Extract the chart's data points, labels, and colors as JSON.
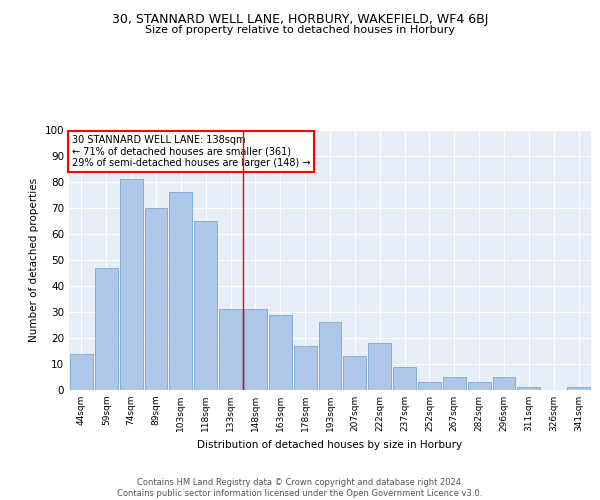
{
  "title1": "30, STANNARD WELL LANE, HORBURY, WAKEFIELD, WF4 6BJ",
  "title2": "Size of property relative to detached houses in Horbury",
  "xlabel": "Distribution of detached houses by size in Horbury",
  "ylabel": "Number of detached properties",
  "categories": [
    "44sqm",
    "59sqm",
    "74sqm",
    "89sqm",
    "103sqm",
    "118sqm",
    "133sqm",
    "148sqm",
    "163sqm",
    "178sqm",
    "193sqm",
    "207sqm",
    "222sqm",
    "237sqm",
    "252sqm",
    "267sqm",
    "282sqm",
    "296sqm",
    "311sqm",
    "326sqm",
    "341sqm"
  ],
  "values": [
    14,
    47,
    81,
    70,
    76,
    65,
    31,
    31,
    29,
    17,
    26,
    13,
    18,
    9,
    3,
    5,
    3,
    5,
    1,
    0,
    1
  ],
  "bar_color": "#aec6e8",
  "bar_edge_color": "#7aa8d0",
  "background_color": "#e8eef8",
  "vline_color": "red",
  "annotation_text": "30 STANNARD WELL LANE: 138sqm\n← 71% of detached houses are smaller (361)\n29% of semi-detached houses are larger (148) →",
  "annotation_box_color": "white",
  "annotation_box_edgecolor": "red",
  "footer_text": "Contains HM Land Registry data © Crown copyright and database right 2024.\nContains public sector information licensed under the Open Government Licence v3.0.",
  "ylim": [
    0,
    100
  ],
  "yticks": [
    0,
    10,
    20,
    30,
    40,
    50,
    60,
    70,
    80,
    90,
    100
  ]
}
